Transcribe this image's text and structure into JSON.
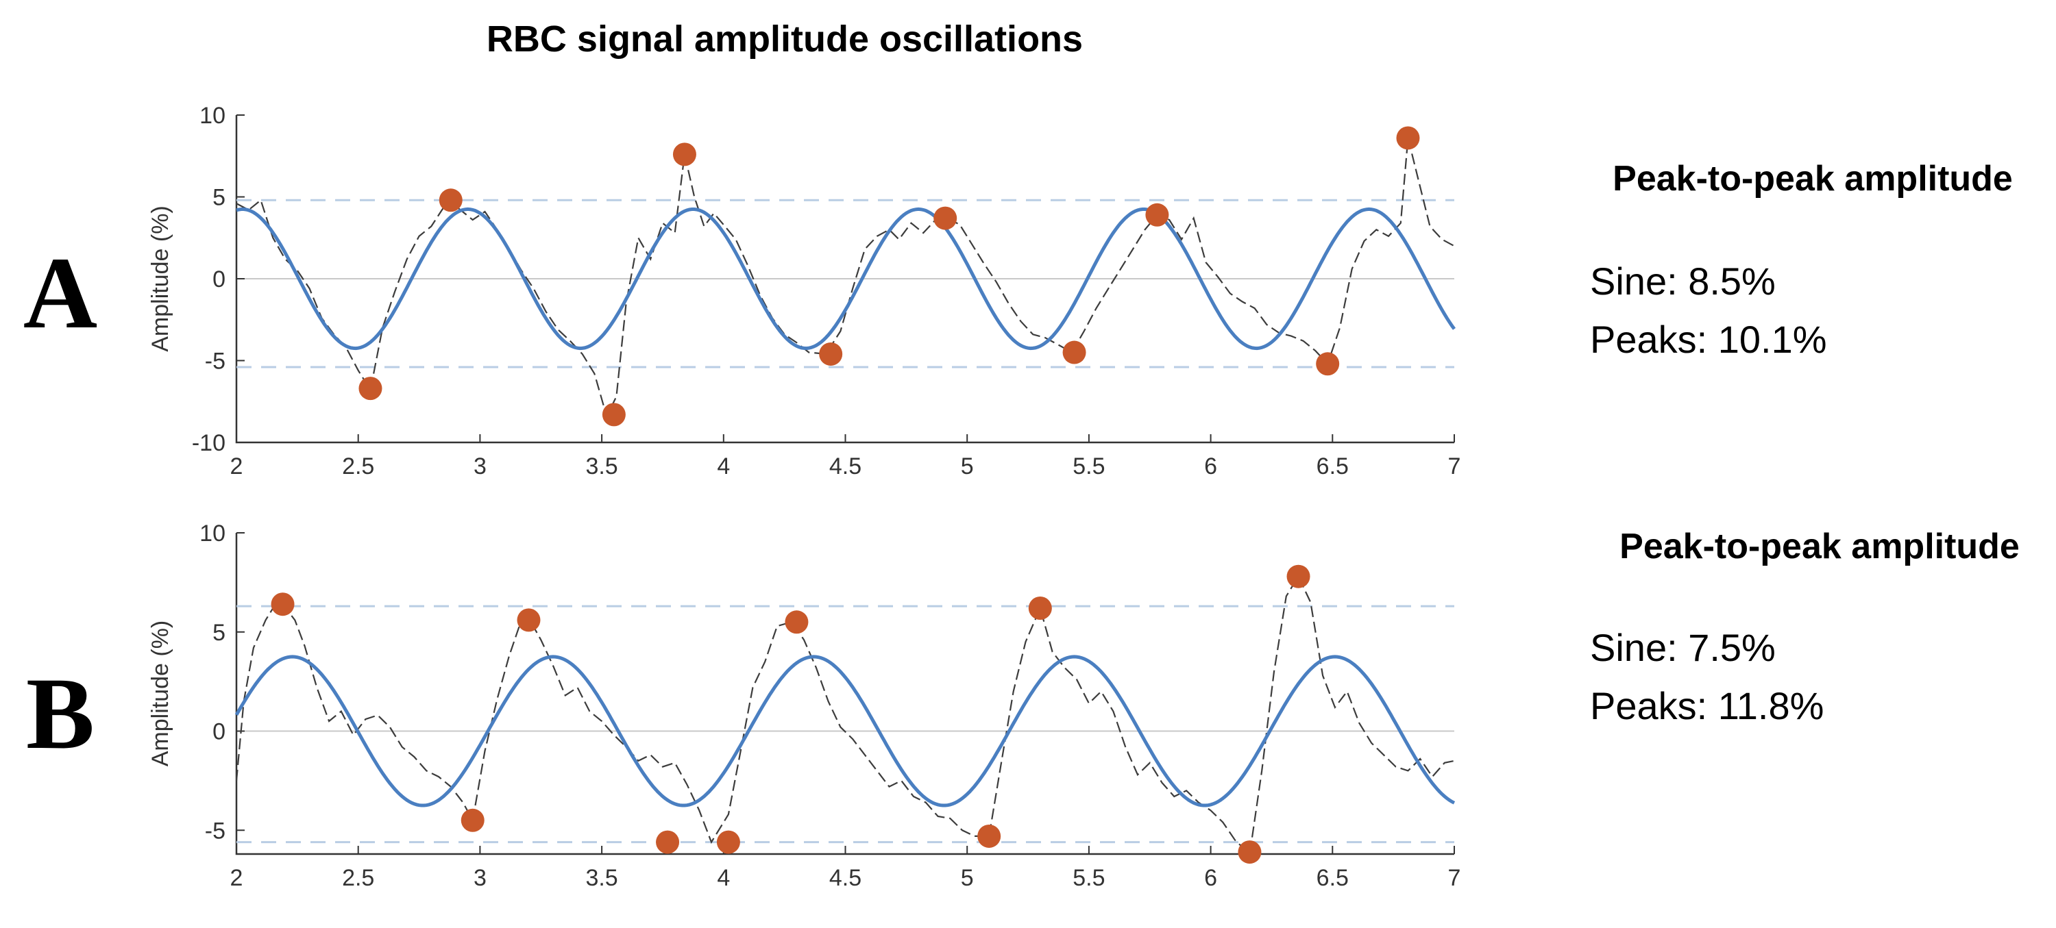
{
  "title": "RBC signal amplitude oscillations",
  "colors": {
    "sine": "#4a7fc1",
    "signal": "#3c3c3c",
    "peaks": "#c8582a",
    "threshold": "#b9cde4",
    "zero": "#c8c8c8",
    "axis": "#333333"
  },
  "chart_data": [
    {
      "panel": "A",
      "type": "line",
      "ylabel": "Amplitude (%)",
      "xlim": [
        2,
        7
      ],
      "ylim": [
        -10,
        10
      ],
      "xticks": [
        "2",
        "2.5",
        "3",
        "3.5",
        "4",
        "4.5",
        "5",
        "5.5",
        "6",
        "6.5",
        "7"
      ],
      "yticks": [
        "-10",
        "-5",
        "0",
        "5",
        "10"
      ],
      "thresholds": [
        4.8,
        -5.4
      ],
      "sine": {
        "amplitude": 4.25,
        "period": 0.925,
        "peak_at": 2.95
      },
      "signal": {
        "x": [
          2.0,
          2.05,
          2.1,
          2.15,
          2.2,
          2.25,
          2.3,
          2.35,
          2.4,
          2.45,
          2.5,
          2.55,
          2.6,
          2.65,
          2.7,
          2.75,
          2.8,
          2.87,
          2.92,
          2.97,
          3.02,
          3.07,
          3.12,
          3.17,
          3.22,
          3.27,
          3.32,
          3.37,
          3.42,
          3.47,
          3.52,
          3.56,
          3.6,
          3.65,
          3.7,
          3.75,
          3.8,
          3.84,
          3.88,
          3.92,
          3.96,
          4.0,
          4.05,
          4.1,
          4.15,
          4.2,
          4.25,
          4.3,
          4.35,
          4.42,
          4.48,
          4.53,
          4.58,
          4.63,
          4.68,
          4.72,
          4.77,
          4.82,
          4.87,
          4.92,
          4.97,
          5.02,
          5.07,
          5.12,
          5.17,
          5.22,
          5.27,
          5.32,
          5.37,
          5.43,
          5.48,
          5.53,
          5.58,
          5.63,
          5.68,
          5.73,
          5.78,
          5.83,
          5.88,
          5.93,
          5.98,
          6.03,
          6.08,
          6.13,
          6.18,
          6.23,
          6.28,
          6.33,
          6.38,
          6.43,
          6.48,
          6.53,
          6.58,
          6.63,
          6.68,
          6.73,
          6.78,
          6.81,
          6.85,
          6.9,
          6.95,
          7.0
        ],
        "y": [
          4.6,
          4.2,
          4.8,
          2.5,
          1.2,
          0.5,
          -0.6,
          -2.4,
          -3.4,
          -4.2,
          -5.6,
          -6.8,
          -3.0,
          -0.8,
          1.2,
          2.6,
          3.2,
          4.8,
          4.2,
          3.6,
          4.1,
          3.0,
          1.8,
          0.5,
          -0.6,
          -2.0,
          -3.1,
          -3.8,
          -4.6,
          -5.8,
          -8.4,
          -7.2,
          -1.5,
          2.5,
          1.2,
          3.4,
          2.8,
          7.6,
          5.0,
          3.2,
          4.0,
          3.3,
          2.4,
          0.8,
          -1.0,
          -2.4,
          -3.4,
          -3.9,
          -4.5,
          -4.6,
          -3.2,
          -0.6,
          1.8,
          2.6,
          3.0,
          2.4,
          3.4,
          2.8,
          3.6,
          3.7,
          3.3,
          2.1,
          0.9,
          -0.2,
          -1.5,
          -2.6,
          -3.4,
          -3.6,
          -4.0,
          -4.5,
          -3.2,
          -1.8,
          -0.6,
          0.6,
          1.8,
          3.0,
          3.9,
          3.6,
          2.4,
          3.7,
          1.0,
          0.1,
          -0.9,
          -1.4,
          -1.8,
          -2.8,
          -3.3,
          -3.5,
          -3.8,
          -4.4,
          -5.2,
          -3.0,
          0.6,
          2.3,
          3.0,
          2.6,
          3.4,
          8.6,
          6.2,
          3.2,
          2.4,
          2.0
        ]
      },
      "peaks": {
        "x": [
          2.55,
          2.88,
          3.55,
          3.84,
          4.44,
          4.91,
          5.44,
          5.78,
          6.48,
          6.81
        ],
        "y": [
          -6.7,
          4.8,
          -8.3,
          7.6,
          -4.6,
          3.7,
          -4.5,
          3.9,
          -5.2,
          8.6
        ]
      }
    },
    {
      "panel": "B",
      "type": "line",
      "ylabel": "Amplitude (%)",
      "xlim": [
        2,
        7
      ],
      "ylim": [
        -6.2,
        10
      ],
      "xticks": [
        "2",
        "2.5",
        "3",
        "3.5",
        "4",
        "4.5",
        "5",
        "5.5",
        "6",
        "6.5",
        "7"
      ],
      "yticks": [
        "-5",
        "0",
        "5",
        "10"
      ],
      "thresholds": [
        6.3,
        -5.6
      ],
      "sine": {
        "amplitude": 3.75,
        "period": 1.07,
        "peak_at": 2.23
      },
      "signal": {
        "x": [
          2.0,
          2.03,
          2.07,
          2.12,
          2.16,
          2.19,
          2.24,
          2.28,
          2.33,
          2.38,
          2.43,
          2.48,
          2.53,
          2.58,
          2.63,
          2.68,
          2.73,
          2.78,
          2.83,
          2.88,
          2.93,
          2.97,
          3.02,
          3.07,
          3.12,
          3.17,
          3.2,
          3.25,
          3.3,
          3.35,
          3.4,
          3.45,
          3.5,
          3.55,
          3.6,
          3.65,
          3.7,
          3.75,
          3.8,
          3.85,
          3.9,
          3.95,
          4.02,
          4.07,
          4.12,
          4.17,
          4.22,
          4.28,
          4.33,
          4.38,
          4.43,
          4.48,
          4.53,
          4.58,
          4.63,
          4.68,
          4.73,
          4.78,
          4.83,
          4.88,
          4.93,
          4.98,
          5.03,
          5.09,
          5.14,
          5.19,
          5.24,
          5.3,
          5.35,
          5.4,
          5.45,
          5.5,
          5.55,
          5.6,
          5.65,
          5.7,
          5.75,
          5.8,
          5.85,
          5.9,
          5.95,
          6.0,
          6.05,
          6.1,
          6.16,
          6.21,
          6.26,
          6.31,
          6.36,
          6.41,
          6.46,
          6.51,
          6.56,
          6.61,
          6.66,
          6.71,
          6.76,
          6.81,
          6.86,
          6.91,
          6.96,
          7.0
        ],
        "y": [
          -2.5,
          1.5,
          4.2,
          5.6,
          6.4,
          6.4,
          5.6,
          4.3,
          2.2,
          0.5,
          1.0,
          -0.2,
          0.6,
          0.8,
          0.2,
          -0.8,
          -1.3,
          -2.0,
          -2.3,
          -2.8,
          -3.6,
          -4.5,
          -1.0,
          1.6,
          3.8,
          5.6,
          5.7,
          4.6,
          3.3,
          1.8,
          2.2,
          1.0,
          0.5,
          -0.2,
          -0.8,
          -1.5,
          -1.2,
          -1.8,
          -1.6,
          -2.7,
          -4.0,
          -5.6,
          -4.2,
          -1.0,
          2.2,
          3.5,
          5.3,
          5.5,
          4.6,
          3.2,
          1.5,
          0.2,
          -0.4,
          -1.2,
          -2.0,
          -2.8,
          -2.5,
          -3.3,
          -3.6,
          -4.3,
          -4.4,
          -5.0,
          -5.3,
          -5.3,
          -1.6,
          2.0,
          4.5,
          6.2,
          4.0,
          3.2,
          2.6,
          1.4,
          2.0,
          1.0,
          -0.8,
          -2.2,
          -1.6,
          -2.6,
          -3.3,
          -3.0,
          -3.6,
          -4.0,
          -4.6,
          -5.5,
          -6.2,
          -2.0,
          3.0,
          6.8,
          7.8,
          6.5,
          2.8,
          1.2,
          2.0,
          0.4,
          -0.6,
          -1.2,
          -1.8,
          -2.0,
          -1.4,
          -2.3,
          -1.6,
          -1.5
        ]
      },
      "peaks": {
        "x": [
          2.19,
          2.97,
          3.2,
          3.77,
          4.02,
          4.3,
          5.09,
          5.3,
          6.16,
          6.36
        ],
        "y": [
          6.4,
          -4.5,
          5.6,
          -5.6,
          -5.6,
          5.5,
          -5.3,
          6.2,
          -6.1,
          7.8
        ]
      }
    }
  ],
  "panels": [
    {
      "letter": "A",
      "stats_title": "Peak-to-peak amplitude",
      "sine_text": "Sine: 8.5%",
      "peaks_text": "Peaks: 10.1%"
    },
    {
      "letter": "B",
      "stats_title": "Peak-to-peak amplitude",
      "sine_text": "Sine: 7.5%",
      "peaks_text": "Peaks: 11.8%"
    }
  ]
}
